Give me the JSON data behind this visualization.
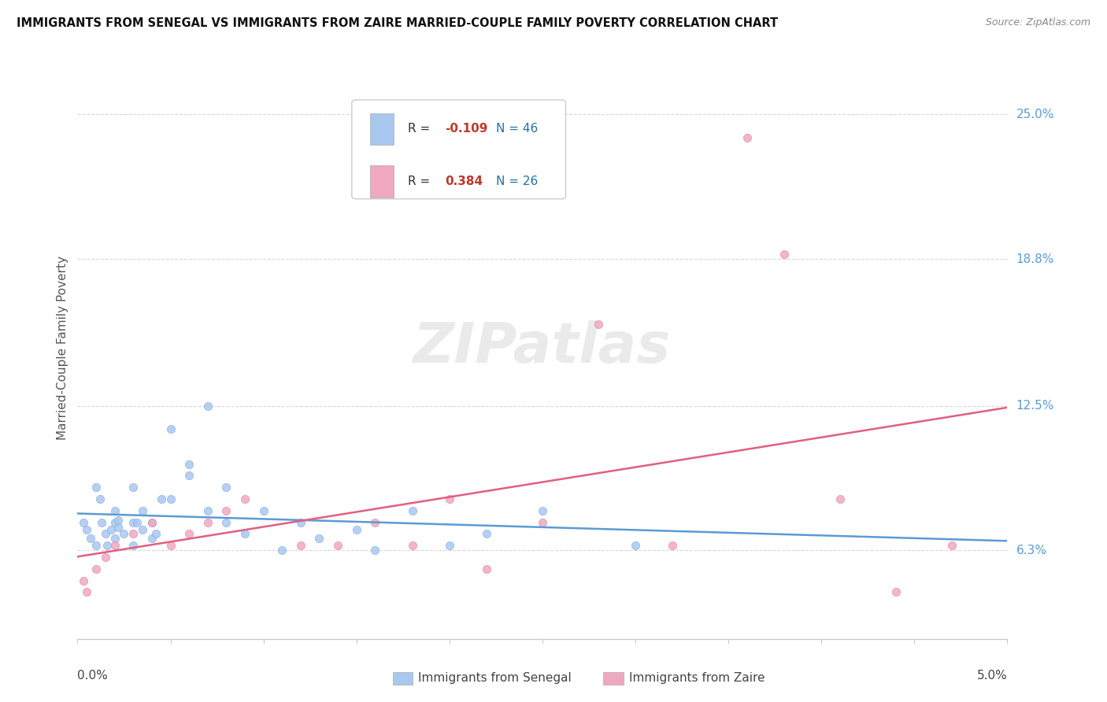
{
  "title": "IMMIGRANTS FROM SENEGAL VS IMMIGRANTS FROM ZAIRE MARRIED-COUPLE FAMILY POVERTY CORRELATION CHART",
  "source": "Source: ZipAtlas.com",
  "ylabel": "Married-Couple Family Poverty",
  "ytick_labels": [
    "6.3%",
    "12.5%",
    "18.8%",
    "25.0%"
  ],
  "ytick_values": [
    0.063,
    0.125,
    0.188,
    0.25
  ],
  "xlim": [
    0.0,
    0.05
  ],
  "ylim": [
    0.025,
    0.275
  ],
  "legend_label1": "Immigrants from Senegal",
  "legend_label2": "Immigrants from Zaire",
  "R1": -0.109,
  "N1": 46,
  "R2": 0.384,
  "N2": 26,
  "color1": "#a8c8f0",
  "color1_line": "#5b9bd5",
  "color2": "#f0a8c0",
  "color2_line": "#e06080",
  "watermark_text": "ZIPatlas",
  "senegal_x": [
    0.0003,
    0.0005,
    0.0007,
    0.001,
    0.001,
    0.0012,
    0.0013,
    0.0015,
    0.0016,
    0.0018,
    0.002,
    0.002,
    0.002,
    0.0022,
    0.0022,
    0.0025,
    0.003,
    0.003,
    0.003,
    0.0032,
    0.0035,
    0.0035,
    0.004,
    0.004,
    0.0042,
    0.0045,
    0.005,
    0.005,
    0.006,
    0.006,
    0.007,
    0.007,
    0.008,
    0.008,
    0.009,
    0.01,
    0.011,
    0.012,
    0.013,
    0.015,
    0.016,
    0.018,
    0.02,
    0.022,
    0.025,
    0.03
  ],
  "senegal_y": [
    0.075,
    0.072,
    0.068,
    0.065,
    0.09,
    0.085,
    0.075,
    0.07,
    0.065,
    0.072,
    0.068,
    0.075,
    0.08,
    0.073,
    0.076,
    0.07,
    0.065,
    0.075,
    0.09,
    0.075,
    0.08,
    0.072,
    0.068,
    0.075,
    0.07,
    0.085,
    0.115,
    0.085,
    0.1,
    0.095,
    0.125,
    0.08,
    0.075,
    0.09,
    0.07,
    0.08,
    0.063,
    0.075,
    0.068,
    0.072,
    0.063,
    0.08,
    0.065,
    0.07,
    0.08,
    0.065
  ],
  "zaire_x": [
    0.0003,
    0.0005,
    0.001,
    0.0015,
    0.002,
    0.003,
    0.004,
    0.005,
    0.006,
    0.007,
    0.008,
    0.009,
    0.012,
    0.014,
    0.016,
    0.018,
    0.02,
    0.022,
    0.025,
    0.028,
    0.032,
    0.036,
    0.038,
    0.041,
    0.044,
    0.047
  ],
  "zaire_y": [
    0.05,
    0.045,
    0.055,
    0.06,
    0.065,
    0.07,
    0.075,
    0.065,
    0.07,
    0.075,
    0.08,
    0.085,
    0.065,
    0.065,
    0.075,
    0.065,
    0.085,
    0.055,
    0.075,
    0.16,
    0.065,
    0.24,
    0.19,
    0.085,
    0.045,
    0.065
  ],
  "grid_color": "#d8d8d8",
  "spine_color": "#cccccc"
}
